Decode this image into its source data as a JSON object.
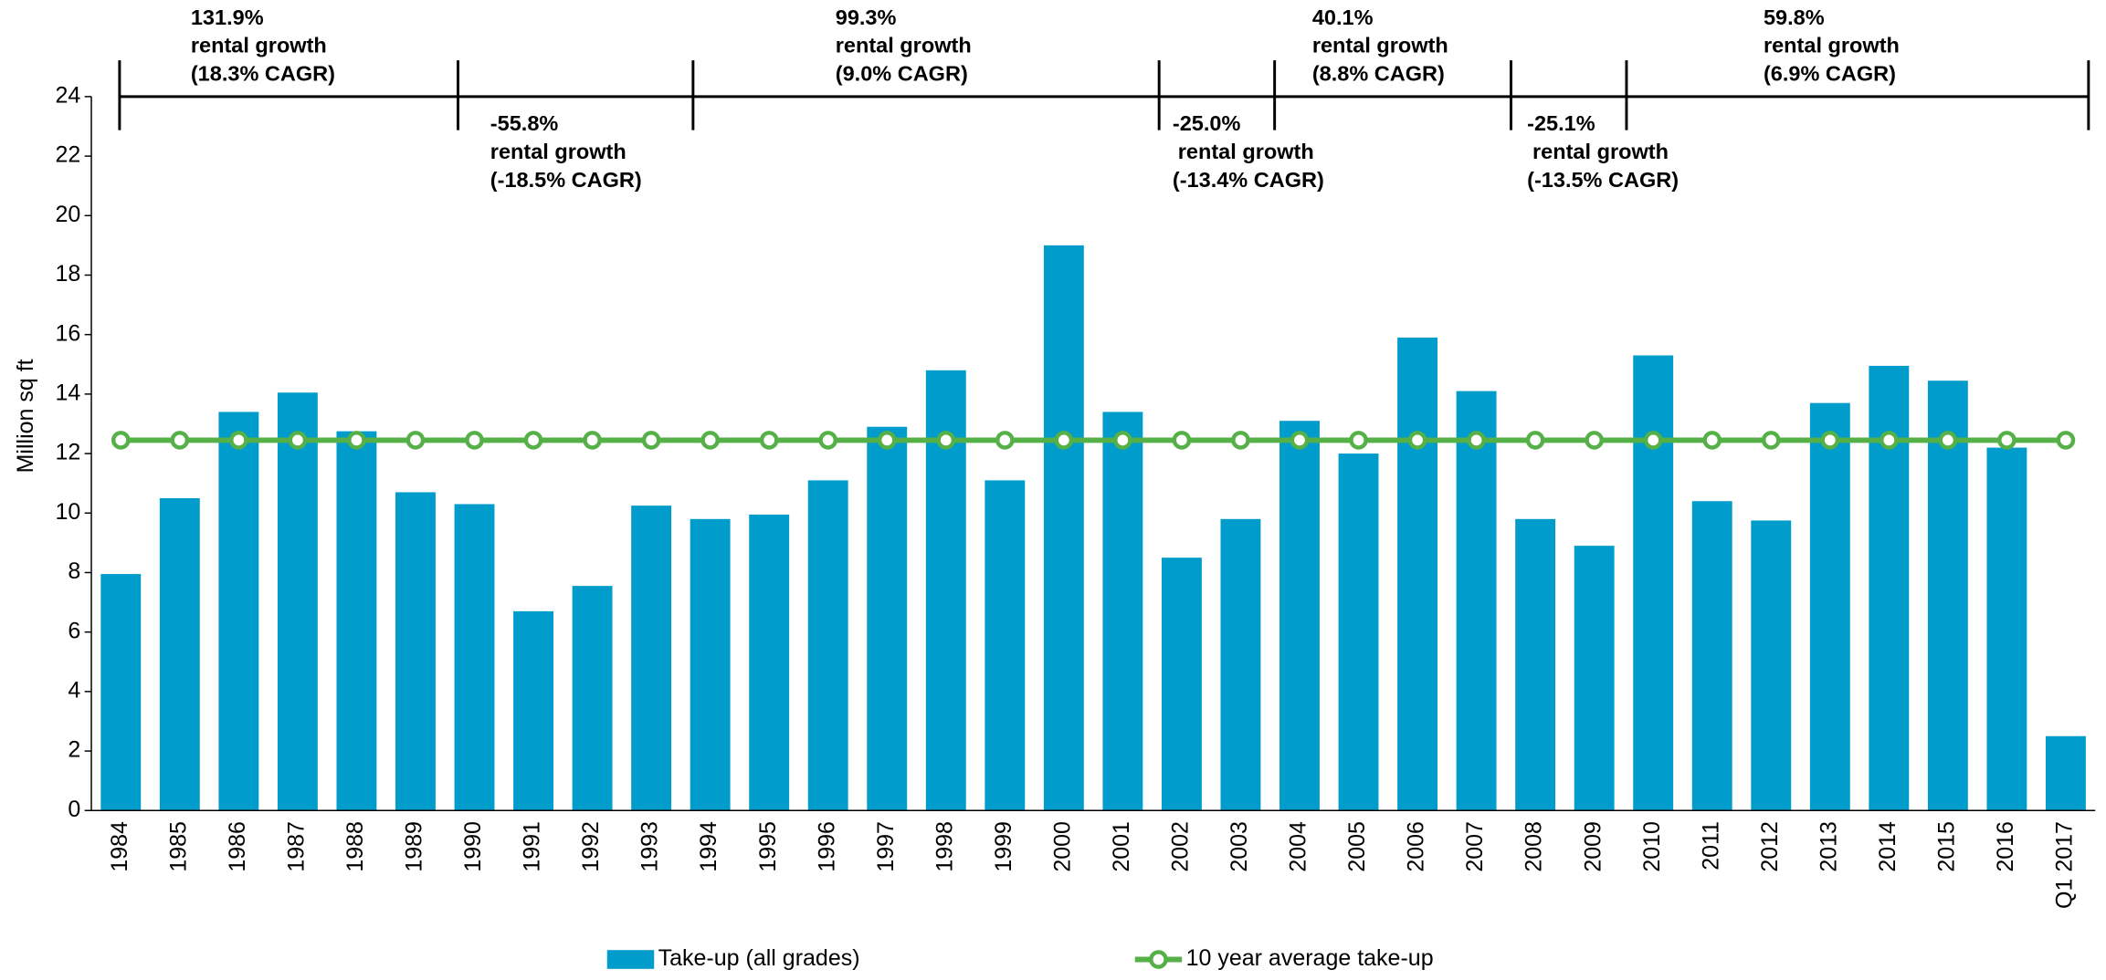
{
  "chart_data": {
    "type": "bar",
    "y_label": "Million sq ft",
    "categories": [
      "1984",
      "1985",
      "1986",
      "1987",
      "1988",
      "1989",
      "1990",
      "1991",
      "1992",
      "1993",
      "1994",
      "1995",
      "1996",
      "1997",
      "1998",
      "1999",
      "2000",
      "2001",
      "2002",
      "2003",
      "2004",
      "2005",
      "2006",
      "2007",
      "2008",
      "2009",
      "2010",
      "2011",
      "2012",
      "2013",
      "2014",
      "2015",
      "2016",
      "Q1 2017"
    ],
    "series": [
      {
        "name": "Take-up (all grades)",
        "type": "bar",
        "color": "#009ccc",
        "values": [
          7.95,
          10.5,
          13.4,
          14.05,
          12.75,
          10.7,
          10.3,
          6.7,
          7.55,
          10.25,
          9.8,
          9.95,
          11.1,
          12.9,
          14.8,
          11.1,
          19.0,
          13.4,
          8.5,
          9.8,
          13.1,
          12.0,
          15.9,
          14.1,
          9.8,
          8.9,
          15.3,
          10.4,
          9.75,
          13.7,
          14.95,
          14.45,
          12.2,
          2.5
        ]
      },
      {
        "name": "10 year average take-up",
        "type": "line",
        "color": "#55b048",
        "values": [
          12.45,
          12.45,
          12.45,
          12.45,
          12.45,
          12.45,
          12.45,
          12.45,
          12.45,
          12.45,
          12.45,
          12.45,
          12.45,
          12.45,
          12.45,
          12.45,
          12.45,
          12.45,
          12.45,
          12.45,
          12.45,
          12.45,
          12.45,
          12.45,
          12.45,
          12.45,
          12.45,
          12.45,
          12.45,
          12.45,
          12.45,
          12.45,
          12.45,
          12.45
        ]
      }
    ],
    "ylim": [
      0,
      24
    ],
    "yticks": [
      0,
      2,
      4,
      6,
      8,
      10,
      12,
      14,
      16,
      18,
      20,
      22,
      24
    ],
    "annotations": [
      [
        "131.9%",
        "rental growth",
        "(18.3% CAGR)"
      ],
      [
        "-55.8%",
        "rental growth",
        "(-18.5% CAGR)"
      ],
      [
        "99.3%",
        "rental growth",
        "(9.0% CAGR)"
      ],
      [
        "-25.0%",
        "rental growth",
        "(-13.4% CAGR)"
      ],
      [
        "40.1%",
        "rental growth",
        "(8.8% CAGR)"
      ],
      [
        "-25.1%",
        "rental growth",
        "(-13.5% CAGR)"
      ],
      [
        "59.8%",
        "rental growth",
        "(6.9% CAGR)"
      ]
    ]
  }
}
